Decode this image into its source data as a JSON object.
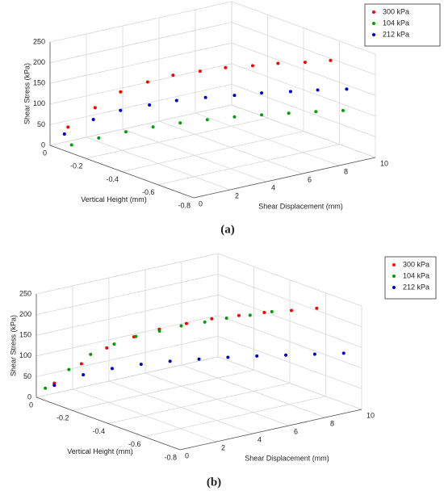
{
  "chart_data": [
    {
      "type": "scatter3d",
      "caption": "(a)",
      "xlabel": "Shear Displacement (mm)",
      "ylabel": "Vertical Height (mm)",
      "zlabel": "Shear Stress (kPa)",
      "xlim": [
        0,
        10
      ],
      "ylim": [
        -0.8,
        0
      ],
      "zlim": [
        0,
        250
      ],
      "xticks": [
        0,
        2,
        4,
        6,
        8,
        10
      ],
      "yticks": [
        0,
        -0.2,
        -0.4,
        -0.6,
        -0.8
      ],
      "zticks": [
        0,
        50,
        100,
        150,
        200,
        250
      ],
      "grid": true,
      "legend": "upper right",
      "series": [
        {
          "name": "300 kPa",
          "color": "#ff0000",
          "x": [
            0,
            1,
            2,
            3,
            4,
            5,
            6,
            7,
            8,
            9,
            10
          ],
          "y": [
            -0.1,
            -0.15,
            -0.19,
            -0.24,
            -0.28,
            -0.33,
            -0.37,
            -0.42,
            -0.46,
            -0.51,
            -0.55
          ],
          "z": [
            60,
            105,
            140,
            162,
            175,
            183,
            188,
            191,
            193,
            194,
            195
          ]
        },
        {
          "name": "104 kPa",
          "color": "#00a000",
          "x": [
            0,
            1,
            2,
            3,
            4,
            5,
            6,
            7,
            8,
            9,
            10
          ],
          "y": [
            -0.12,
            -0.17,
            -0.22,
            -0.27,
            -0.32,
            -0.37,
            -0.42,
            -0.47,
            -0.52,
            -0.57,
            -0.62
          ],
          "z": [
            20,
            35,
            48,
            58,
            66,
            72,
            77,
            80,
            82,
            84,
            85
          ]
        },
        {
          "name": "212 kPa",
          "color": "#0000cc",
          "x": [
            0,
            1,
            2,
            3,
            4,
            5,
            6,
            7,
            8,
            9,
            10
          ],
          "y": [
            -0.08,
            -0.14,
            -0.19,
            -0.25,
            -0.3,
            -0.36,
            -0.42,
            -0.47,
            -0.53,
            -0.58,
            -0.64
          ],
          "z": [
            40,
            75,
            95,
            108,
            117,
            124,
            129,
            133,
            136,
            138,
            140
          ]
        }
      ]
    },
    {
      "type": "scatter3d",
      "caption": "(b)",
      "xlabel": "Shear Displacement (mm)",
      "ylabel": "Vertical Height (mm)",
      "zlabel": "Shear Stress (kPa)",
      "xlim": [
        0,
        10
      ],
      "ylim": [
        -0.8,
        0
      ],
      "zlim": [
        0,
        250
      ],
      "xticks": [
        0,
        2,
        4,
        6,
        8,
        10
      ],
      "yticks": [
        0,
        -0.2,
        -0.4,
        -0.6,
        -0.8
      ],
      "zticks": [
        0,
        50,
        100,
        150,
        200,
        250
      ],
      "grid": true,
      "legend": "upper right",
      "series": [
        {
          "name": "300 kPa",
          "color": "#ff0000",
          "x": [
            0,
            1,
            2,
            3,
            4,
            5,
            6,
            7,
            8,
            9,
            10
          ],
          "y": [
            -0.1,
            -0.15,
            -0.19,
            -0.24,
            -0.28,
            -0.33,
            -0.37,
            -0.42,
            -0.46,
            -0.51,
            -0.55
          ],
          "z": [
            50,
            95,
            130,
            155,
            170,
            182,
            190,
            196,
            200,
            203,
            205
          ]
        },
        {
          "name": "104 kPa",
          "color": "#00a000",
          "x": [
            0,
            1,
            2,
            3,
            4,
            5,
            6,
            7,
            8,
            9,
            10
          ],
          "y": [
            -0.05,
            -0.08,
            -0.1,
            -0.13,
            -0.15,
            -0.18,
            -0.2,
            -0.23,
            -0.25,
            -0.28,
            -0.3
          ],
          "z": [
            30,
            70,
            100,
            120,
            132,
            140,
            146,
            150,
            153,
            155,
            157
          ]
        },
        {
          "name": "212 kPa",
          "color": "#0000cc",
          "x": [
            0,
            1,
            2,
            3,
            4,
            5,
            6,
            7,
            8,
            9,
            10
          ],
          "y": [
            -0.1,
            -0.16,
            -0.22,
            -0.28,
            -0.34,
            -0.4,
            -0.46,
            -0.52,
            -0.58,
            -0.64,
            -0.7
          ],
          "z": [
            45,
            70,
            85,
            95,
            102,
            107,
            111,
            114,
            116,
            118,
            120
          ]
        }
      ]
    }
  ]
}
